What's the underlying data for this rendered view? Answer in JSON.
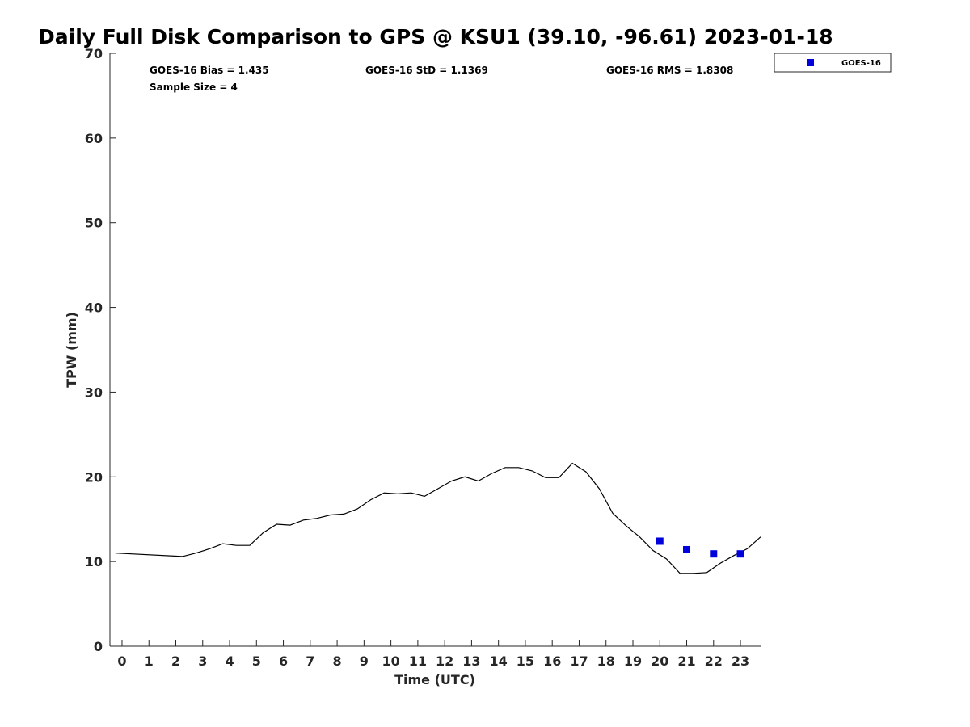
{
  "chart_data": {
    "type": "line",
    "title": "Daily Full Disk Comparison to GPS @ KSU1 (39.10, -96.61) 2023-01-18",
    "xlabel": "Time (UTC)",
    "ylabel": "TPW (mm)",
    "xlim": [
      -0.45,
      23.75
    ],
    "ylim": [
      0,
      70
    ],
    "xticks": [
      0,
      1,
      2,
      3,
      4,
      5,
      6,
      7,
      8,
      9,
      10,
      11,
      12,
      13,
      14,
      15,
      16,
      17,
      18,
      19,
      20,
      21,
      22,
      23
    ],
    "xtick_labels": [
      "0",
      "1",
      "2",
      "3",
      "4",
      "5",
      "6",
      "7",
      "8",
      "9",
      "10",
      "11",
      "12",
      "13",
      "14",
      "15",
      "16",
      "17",
      "18",
      "19",
      "20",
      "21",
      "22",
      "23"
    ],
    "yticks": [
      0,
      10,
      20,
      30,
      40,
      50,
      60,
      70
    ],
    "ytick_labels": [
      "0",
      "10",
      "20",
      "30",
      "40",
      "50",
      "60",
      "70"
    ],
    "grid": false,
    "legend_position": "top-right",
    "stats": {
      "bias": "GOES-16 Bias = 1.435",
      "std": "GOES-16 StD = 1.1369",
      "rms": "GOES-16 RMS = 1.8308",
      "sample": "Sample Size = 4"
    },
    "gps_line": {
      "color": "#000000",
      "x": [
        -0.25,
        2.25,
        2.75,
        3.25,
        3.75,
        4.25,
        4.75,
        5.25,
        5.75,
        6.25,
        6.75,
        7.25,
        7.75,
        8.25,
        8.75,
        9.25,
        9.75,
        10.25,
        10.75,
        11.25,
        11.75,
        12.25,
        12.75,
        13.25,
        13.75,
        14.25,
        14.75,
        15.25,
        15.75,
        16.25,
        16.75,
        17.25,
        17.75,
        18.25,
        18.75,
        19.25,
        19.75,
        20.25,
        20.75,
        21.25,
        21.75,
        22.25,
        22.75,
        23.25,
        23.75
      ],
      "y": [
        11.0,
        10.6,
        11.0,
        11.5,
        12.1,
        11.9,
        11.9,
        13.4,
        14.4,
        14.3,
        14.9,
        15.1,
        15.5,
        15.6,
        16.2,
        17.3,
        18.1,
        18.0,
        18.1,
        17.7,
        18.6,
        19.5,
        20.0,
        19.5,
        20.4,
        21.1,
        21.1,
        20.7,
        19.9,
        19.9,
        21.6,
        20.6,
        18.6,
        15.7,
        14.2,
        12.9,
        11.3,
        10.3,
        8.6,
        8.6,
        8.7,
        9.8,
        10.7,
        11.5,
        12.9
      ]
    },
    "series": [
      {
        "name": "GOES-16",
        "color": "#0000dd",
        "x": [
          20,
          21,
          22,
          23
        ],
        "y": [
          12.4,
          11.4,
          10.9,
          10.9
        ]
      }
    ]
  }
}
